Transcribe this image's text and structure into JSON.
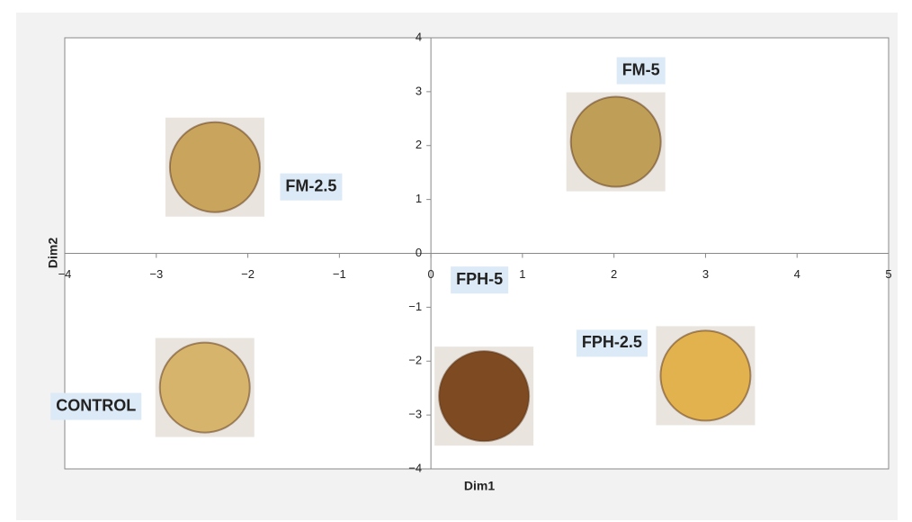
{
  "chart_data": {
    "type": "scatter",
    "xlabel": "Dim1",
    "ylabel": "Dim2",
    "xlim": [
      -4,
      5
    ],
    "ylim": [
      -4,
      4
    ],
    "xticks": [
      {
        "value": -4,
        "label": "−4"
      },
      {
        "value": -3,
        "label": "−3"
      },
      {
        "value": -2,
        "label": "−2"
      },
      {
        "value": -1,
        "label": "−1"
      },
      0,
      1,
      2,
      3,
      4,
      5
    ],
    "yticks": [
      {
        "value": -4,
        "label": "−4"
      },
      {
        "value": -3,
        "label": "−3"
      },
      {
        "value": -2,
        "label": "−2"
      },
      {
        "value": -1,
        "label": "−1"
      },
      0,
      1,
      2,
      3,
      4
    ],
    "points": [
      {
        "label": "FM-2.5",
        "x": -2.36,
        "y": 1.6,
        "color": "#c9a45c"
      },
      {
        "label": "FM-5",
        "x": 2.02,
        "y": 2.07,
        "color": "#bf9f57"
      },
      {
        "label": "CONTROL",
        "x": -2.47,
        "y": -2.49,
        "color": "#d6b46c"
      },
      {
        "label": "FPH-5",
        "x": 0.58,
        "y": -2.65,
        "color": "#7d4a22"
      },
      {
        "label": "FPH-2.5",
        "x": 3.0,
        "y": -2.27,
        "color": "#e2b24f"
      }
    ]
  }
}
